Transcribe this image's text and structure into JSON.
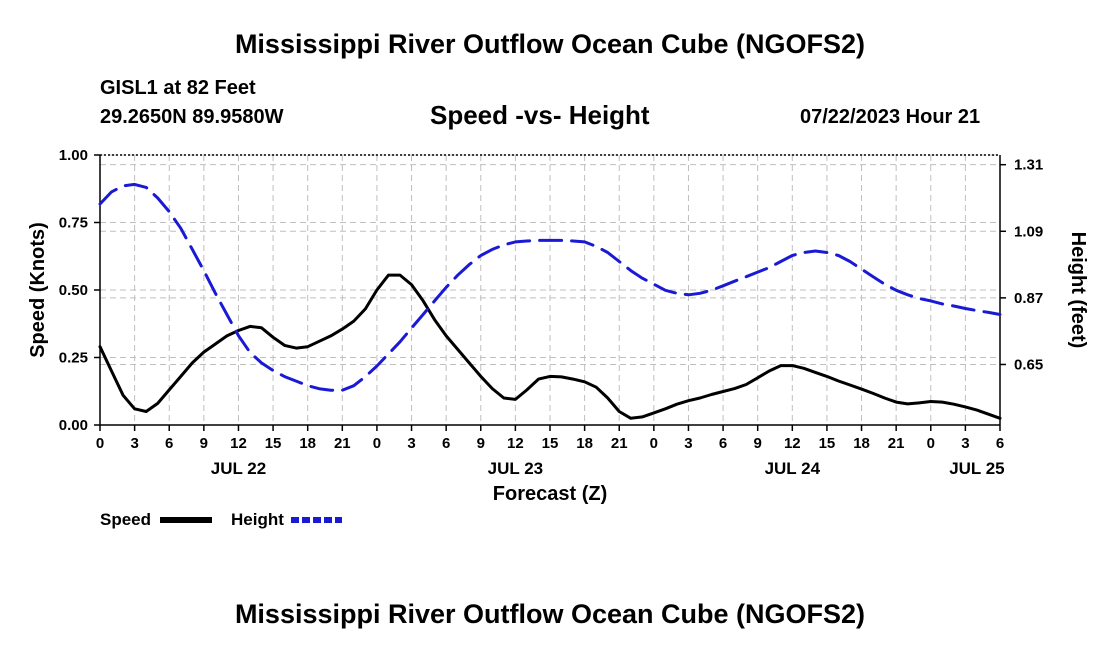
{
  "page": {
    "title": "Mississippi River Outflow Ocean Cube (NGOFS2)",
    "title_repeat": "Mississippi River Outflow Ocean Cube (NGOFS2)",
    "station": "GISL1 at 82 Feet",
    "coordinates": "29.2650N  89.9580W",
    "subtitle": "Speed -vs- Height",
    "datetime": "07/22/2023 Hour 21"
  },
  "colors": {
    "speed": "#000000",
    "height": "#1a1ad4",
    "grid": "#bfbfbf"
  },
  "chart_data": {
    "type": "line",
    "title": "Speed -vs- Height",
    "xlabel": "Forecast (Z)",
    "ylabel": "Speed (Knots)",
    "y2label": "Height (feet)",
    "x_unit": "hours from Jul 22 00Z",
    "xlim": [
      0,
      78
    ],
    "ylim": [
      0,
      1
    ],
    "y2lim": [
      0.45,
      1.342
    ],
    "x_ticks": [
      {
        "x": 0,
        "label": "0"
      },
      {
        "x": 3,
        "label": "3"
      },
      {
        "x": 6,
        "label": "6"
      },
      {
        "x": 9,
        "label": "9"
      },
      {
        "x": 12,
        "label": "12"
      },
      {
        "x": 15,
        "label": "15"
      },
      {
        "x": 18,
        "label": "18"
      },
      {
        "x": 21,
        "label": "21"
      },
      {
        "x": 24,
        "label": "0"
      },
      {
        "x": 27,
        "label": "3"
      },
      {
        "x": 30,
        "label": "6"
      },
      {
        "x": 33,
        "label": "9"
      },
      {
        "x": 36,
        "label": "12"
      },
      {
        "x": 39,
        "label": "15"
      },
      {
        "x": 42,
        "label": "18"
      },
      {
        "x": 45,
        "label": "21"
      },
      {
        "x": 48,
        "label": "0"
      },
      {
        "x": 51,
        "label": "3"
      },
      {
        "x": 54,
        "label": "6"
      },
      {
        "x": 57,
        "label": "9"
      },
      {
        "x": 60,
        "label": "12"
      },
      {
        "x": 63,
        "label": "15"
      },
      {
        "x": 66,
        "label": "18"
      },
      {
        "x": 69,
        "label": "21"
      },
      {
        "x": 72,
        "label": "0"
      },
      {
        "x": 75,
        "label": "3"
      },
      {
        "x": 78,
        "label": "6"
      }
    ],
    "date_labels": [
      {
        "x": 12,
        "label": "JUL 22"
      },
      {
        "x": 36,
        "label": "JUL 23"
      },
      {
        "x": 60,
        "label": "JUL 24"
      },
      {
        "x": 76,
        "label": "JUL 25"
      }
    ],
    "y_ticks": [
      {
        "v": 0,
        "label": "0.00"
      },
      {
        "v": 0.25,
        "label": "0.25"
      },
      {
        "v": 0.5,
        "label": "0.50"
      },
      {
        "v": 0.75,
        "label": "0.75"
      },
      {
        "v": 1,
        "label": "1.00"
      }
    ],
    "y2_ticks": [
      {
        "v": 0.65,
        "label": "0.65"
      },
      {
        "v": 0.87,
        "label": "0.87"
      },
      {
        "v": 1.09,
        "label": "1.09"
      },
      {
        "v": 1.31,
        "label": "1.31"
      }
    ],
    "series": [
      {
        "name": "Speed",
        "axis": "left",
        "style": "solid",
        "x": [
          0,
          1,
          2,
          3,
          4,
          5,
          6,
          7,
          8,
          9,
          10,
          11,
          12,
          13,
          14,
          15,
          16,
          17,
          18,
          19,
          20,
          21,
          22,
          23,
          24,
          25,
          26,
          27,
          28,
          29,
          30,
          31,
          32,
          33,
          34,
          35,
          36,
          37,
          38,
          39,
          40,
          41,
          42,
          43,
          44,
          45,
          46,
          47,
          48,
          49,
          50,
          51,
          52,
          53,
          54,
          55,
          56,
          57,
          58,
          59,
          60,
          61,
          62,
          63,
          64,
          65,
          66,
          67,
          68,
          69,
          70,
          71,
          72,
          73,
          74,
          75,
          76,
          77,
          78
        ],
        "values": [
          0.29,
          0.2,
          0.11,
          0.06,
          0.05,
          0.08,
          0.13,
          0.18,
          0.23,
          0.27,
          0.3,
          0.33,
          0.35,
          0.365,
          0.36,
          0.325,
          0.295,
          0.285,
          0.29,
          0.31,
          0.33,
          0.355,
          0.385,
          0.43,
          0.5,
          0.555,
          0.555,
          0.52,
          0.46,
          0.39,
          0.33,
          0.28,
          0.23,
          0.18,
          0.135,
          0.1,
          0.095,
          0.13,
          0.17,
          0.18,
          0.178,
          0.17,
          0.16,
          0.14,
          0.1,
          0.05,
          0.025,
          0.03,
          0.045,
          0.06,
          0.077,
          0.09,
          0.1,
          0.113,
          0.124,
          0.135,
          0.15,
          0.175,
          0.2,
          0.22,
          0.22,
          0.21,
          0.195,
          0.18,
          0.163,
          0.148,
          0.133,
          0.117,
          0.1,
          0.085,
          0.078,
          0.082,
          0.087,
          0.085,
          0.077,
          0.067,
          0.055,
          0.04,
          0.025
        ]
      },
      {
        "name": "Height",
        "axis": "right",
        "style": "dashed",
        "x": [
          0,
          1,
          2,
          3,
          4,
          5,
          6,
          7,
          8,
          9,
          10,
          11,
          12,
          13,
          14,
          15,
          16,
          17,
          18,
          19,
          20,
          21,
          22,
          23,
          24,
          25,
          26,
          27,
          28,
          29,
          30,
          31,
          32,
          33,
          34,
          35,
          36,
          37,
          38,
          39,
          40,
          41,
          42,
          43,
          44,
          45,
          46,
          47,
          48,
          49,
          50,
          51,
          52,
          53,
          54,
          55,
          56,
          57,
          58,
          59,
          60,
          61,
          62,
          63,
          64,
          65,
          66,
          67,
          68,
          69,
          70,
          71,
          72,
          73,
          74,
          75,
          76,
          77,
          78
        ],
        "values": [
          1.18,
          1.22,
          1.24,
          1.245,
          1.235,
          1.2,
          1.155,
          1.1,
          1.03,
          0.96,
          0.885,
          0.815,
          0.745,
          0.69,
          0.655,
          0.63,
          0.61,
          0.595,
          0.58,
          0.57,
          0.565,
          0.565,
          0.58,
          0.61,
          0.645,
          0.685,
          0.725,
          0.77,
          0.815,
          0.86,
          0.905,
          0.945,
          0.98,
          1.01,
          1.03,
          1.045,
          1.055,
          1.058,
          1.06,
          1.06,
          1.06,
          1.058,
          1.055,
          1.04,
          1.02,
          0.99,
          0.96,
          0.935,
          0.915,
          0.895,
          0.885,
          0.88,
          0.885,
          0.895,
          0.91,
          0.925,
          0.94,
          0.955,
          0.97,
          0.99,
          1.01,
          1.02,
          1.025,
          1.02,
          1.01,
          0.99,
          0.965,
          0.94,
          0.915,
          0.895,
          0.88,
          0.868,
          0.86,
          0.85,
          0.843,
          0.835,
          0.828,
          0.822,
          0.815
        ]
      }
    ],
    "legend": [
      {
        "name": "Speed",
        "style": "solid"
      },
      {
        "name": "Height",
        "style": "dashed"
      }
    ],
    "legend_position": "bottom-left",
    "grid": true
  }
}
